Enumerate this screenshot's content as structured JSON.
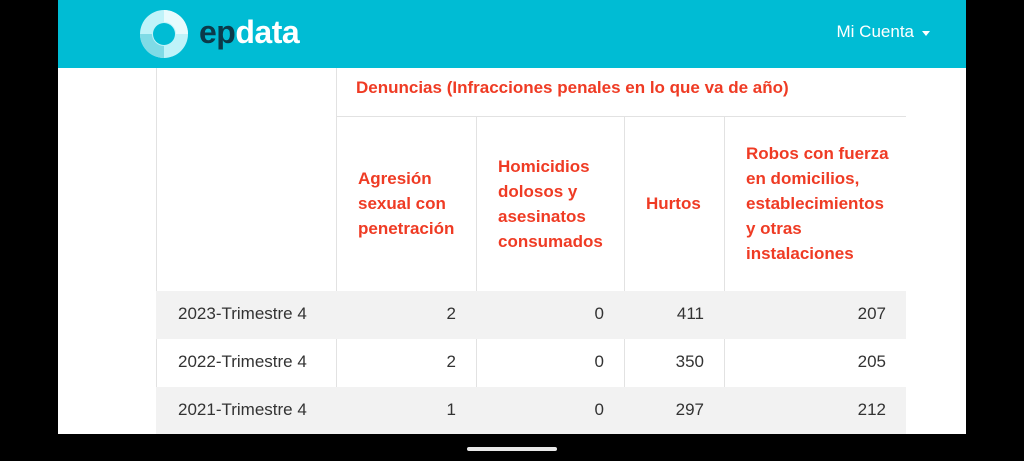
{
  "app": {
    "brand_ep": "ep",
    "brand_data": "data",
    "account_label": "Mi Cuenta",
    "colors": {
      "header": "#00bcd4",
      "accent": "#ef3b24"
    }
  },
  "table": {
    "group_header": "Denuncias (Infracciones penales en lo que va de año)",
    "columns": [
      "Agresión sexual con penetración",
      "Homicidios dolosos y asesinatos consumados",
      "Hurtos",
      "Robos con fuerza en domicilios, establecimientos y otras instalaciones"
    ],
    "rows": [
      {
        "label": "2023-Trimestre 4",
        "values": [
          "2",
          "0",
          "411",
          "207"
        ]
      },
      {
        "label": "2022-Trimestre 4",
        "values": [
          "2",
          "0",
          "350",
          "205"
        ]
      },
      {
        "label": "2021-Trimestre 4",
        "values": [
          "1",
          "0",
          "297",
          "212"
        ]
      }
    ]
  }
}
